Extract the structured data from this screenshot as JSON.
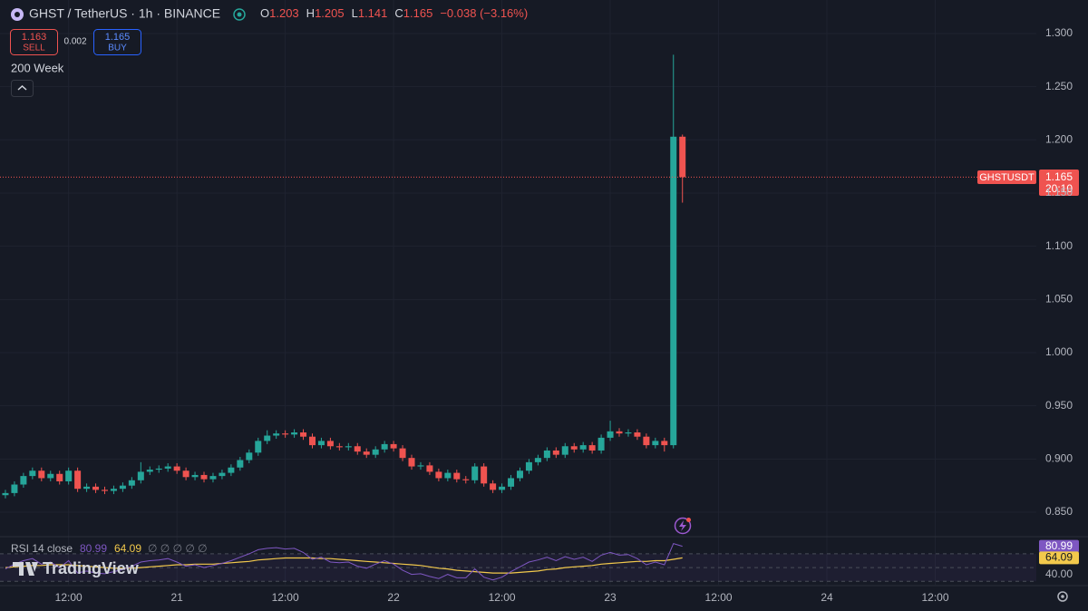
{
  "header": {
    "symbol": "GHST / TetherUS · 1h · BINANCE",
    "o": "O",
    "h": "H",
    "l": "L",
    "c": "C",
    "change": "−0.038 (−3.16%)"
  },
  "trading": {
    "sell": 1.163,
    "sell_label": "SELL",
    "spread": 0.002,
    "buy": 1.165,
    "buy_label": "BUY"
  },
  "indicator_label": "200 Week",
  "price_tag": {
    "symbol": "GHSTUSDT",
    "countdown": "20:10"
  },
  "watermark": "TradingView",
  "chart_data": {
    "type": "candlestick",
    "up_color": "#26a69a",
    "down_color": "#ef5350",
    "grid": true,
    "ylim": [
      0.827,
      1.3315
    ],
    "yticks": [
      {
        "value": 0.85,
        "label": "0.850"
      },
      {
        "value": 0.9,
        "label": "0.900"
      },
      {
        "value": 0.95,
        "label": "0.950"
      },
      {
        "value": 1.0,
        "label": "1.000"
      },
      {
        "value": 1.05,
        "label": "1.050"
      },
      {
        "value": 1.1,
        "label": "1.100"
      },
      {
        "value": 1.15,
        "label": "1.150"
      },
      {
        "value": 1.2,
        "label": "1.200"
      },
      {
        "value": 1.25,
        "label": "1.250"
      },
      {
        "value": 1.3,
        "label": "1.300"
      }
    ],
    "xlim": [
      -0.6,
      114.2
    ],
    "xticks": [
      {
        "value": 7,
        "label": "12:00"
      },
      {
        "value": 19,
        "label": "21"
      },
      {
        "value": 31,
        "label": "12:00"
      },
      {
        "value": 43,
        "label": "22"
      },
      {
        "value": 55,
        "label": "12:00"
      },
      {
        "value": 67,
        "label": "23"
      },
      {
        "value": 79,
        "label": "12:00"
      },
      {
        "value": 91,
        "label": "24"
      },
      {
        "value": 103,
        "label": "12:00"
      }
    ],
    "ohlc": [
      [
        0.866,
        0.871,
        0.863,
        0.868
      ],
      [
        0.868,
        0.879,
        0.865,
        0.876
      ],
      [
        0.876,
        0.887,
        0.873,
        0.884
      ],
      [
        0.884,
        0.892,
        0.881,
        0.889
      ],
      [
        0.889,
        0.892,
        0.879,
        0.882
      ],
      [
        0.882,
        0.889,
        0.879,
        0.886
      ],
      [
        0.886,
        0.889,
        0.876,
        0.879
      ],
      [
        0.879,
        0.892,
        0.876,
        0.889
      ],
      [
        0.889,
        0.892,
        0.869,
        0.872
      ],
      [
        0.872,
        0.877,
        0.869,
        0.874
      ],
      [
        0.874,
        0.877,
        0.868,
        0.871
      ],
      [
        0.871,
        0.874,
        0.867,
        0.87
      ],
      [
        0.87,
        0.875,
        0.867,
        0.872
      ],
      [
        0.872,
        0.878,
        0.869,
        0.875
      ],
      [
        0.875,
        0.883,
        0.872,
        0.88
      ],
      [
        0.88,
        0.897,
        0.877,
        0.888
      ],
      [
        0.888,
        0.893,
        0.885,
        0.89
      ],
      [
        0.89,
        0.894,
        0.887,
        0.891
      ],
      [
        0.891,
        0.896,
        0.888,
        0.893
      ],
      [
        0.893,
        0.896,
        0.886,
        0.889
      ],
      [
        0.889,
        0.892,
        0.88,
        0.883
      ],
      [
        0.883,
        0.888,
        0.88,
        0.885
      ],
      [
        0.885,
        0.888,
        0.878,
        0.881
      ],
      [
        0.881,
        0.887,
        0.878,
        0.884
      ],
      [
        0.884,
        0.89,
        0.881,
        0.887
      ],
      [
        0.887,
        0.895,
        0.884,
        0.892
      ],
      [
        0.892,
        0.902,
        0.889,
        0.899
      ],
      [
        0.899,
        0.909,
        0.896,
        0.906
      ],
      [
        0.906,
        0.92,
        0.903,
        0.917
      ],
      [
        0.917,
        0.927,
        0.914,
        0.922
      ],
      [
        0.922,
        0.927,
        0.919,
        0.924
      ],
      [
        0.924,
        0.927,
        0.92,
        0.923
      ],
      [
        0.923,
        0.928,
        0.92,
        0.925
      ],
      [
        0.925,
        0.928,
        0.918,
        0.921
      ],
      [
        0.921,
        0.924,
        0.91,
        0.913
      ],
      [
        0.913,
        0.92,
        0.91,
        0.917
      ],
      [
        0.917,
        0.92,
        0.909,
        0.912
      ],
      [
        0.912,
        0.915,
        0.908,
        0.911
      ],
      [
        0.911,
        0.915,
        0.908,
        0.912
      ],
      [
        0.912,
        0.915,
        0.904,
        0.907
      ],
      [
        0.907,
        0.91,
        0.901,
        0.904
      ],
      [
        0.904,
        0.912,
        0.901,
        0.909
      ],
      [
        0.909,
        0.917,
        0.906,
        0.914
      ],
      [
        0.914,
        0.917,
        0.907,
        0.91
      ],
      [
        0.91,
        0.913,
        0.898,
        0.901
      ],
      [
        0.901,
        0.904,
        0.89,
        0.893
      ],
      [
        0.893,
        0.897,
        0.89,
        0.894
      ],
      [
        0.894,
        0.897,
        0.885,
        0.888
      ],
      [
        0.888,
        0.891,
        0.879,
        0.882
      ],
      [
        0.882,
        0.89,
        0.879,
        0.887
      ],
      [
        0.887,
        0.89,
        0.878,
        0.881
      ],
      [
        0.881,
        0.884,
        0.877,
        0.88
      ],
      [
        0.88,
        0.896,
        0.877,
        0.893
      ],
      [
        0.893,
        0.896,
        0.874,
        0.877
      ],
      [
        0.877,
        0.88,
        0.868,
        0.871
      ],
      [
        0.871,
        0.877,
        0.868,
        0.874
      ],
      [
        0.874,
        0.885,
        0.871,
        0.882
      ],
      [
        0.882,
        0.892,
        0.879,
        0.889
      ],
      [
        0.889,
        0.9,
        0.886,
        0.897
      ],
      [
        0.897,
        0.904,
        0.894,
        0.901
      ],
      [
        0.901,
        0.911,
        0.898,
        0.908
      ],
      [
        0.908,
        0.911,
        0.901,
        0.904
      ],
      [
        0.904,
        0.915,
        0.901,
        0.912
      ],
      [
        0.912,
        0.915,
        0.906,
        0.909
      ],
      [
        0.909,
        0.916,
        0.906,
        0.913
      ],
      [
        0.913,
        0.916,
        0.905,
        0.908
      ],
      [
        0.908,
        0.923,
        0.905,
        0.92
      ],
      [
        0.92,
        0.936,
        0.917,
        0.926
      ],
      [
        0.926,
        0.929,
        0.921,
        0.924
      ],
      [
        0.924,
        0.928,
        0.921,
        0.925
      ],
      [
        0.925,
        0.928,
        0.918,
        0.921
      ],
      [
        0.921,
        0.924,
        0.91,
        0.913
      ],
      [
        0.913,
        0.92,
        0.91,
        0.917
      ],
      [
        0.917,
        0.92,
        0.907,
        0.913
      ],
      [
        0.913,
        1.28,
        0.91,
        1.203
      ],
      [
        1.203,
        1.205,
        1.141,
        1.165
      ]
    ],
    "rsi_pane": {
      "label": "RSI 14 close",
      "extra": "∅ ∅ ∅ ∅ ∅",
      "ylim": [
        25,
        95
      ],
      "yticks": [
        {
          "value": 40,
          "label": "40.00"
        }
      ],
      "levels": [
        70,
        50,
        30
      ],
      "rsi": {
        "color": "#7e57c2",
        "values": [
          48,
          55,
          60,
          63,
          55,
          58,
          50,
          60,
          42,
          45,
          42,
          41,
          44,
          47,
          52,
          58,
          60,
          61,
          63,
          58,
          52,
          54,
          50,
          53,
          56,
          60,
          65,
          70,
          76,
          78,
          79,
          77,
          78,
          72,
          62,
          65,
          58,
          57,
          58,
          52,
          49,
          55,
          60,
          55,
          46,
          40,
          41,
          37,
          34,
          40,
          35,
          35,
          48,
          36,
          32,
          36,
          44,
          51,
          58,
          61,
          65,
          60,
          66,
          62,
          65,
          59,
          68,
          72,
          68,
          69,
          63,
          54,
          58,
          54,
          85,
          80.99
        ]
      },
      "ma": {
        "color": "#f2c94c",
        "values": [
          50,
          51,
          52,
          53,
          53,
          54,
          54,
          54,
          53,
          52,
          51,
          50,
          49,
          49,
          49,
          50,
          51,
          52,
          53,
          54,
          54,
          55,
          55,
          55,
          56,
          57,
          58,
          59,
          61,
          62,
          63,
          64,
          64,
          64,
          64,
          63,
          63,
          62,
          61,
          60,
          59,
          58,
          57,
          56,
          55,
          54,
          53,
          51,
          49,
          48,
          46,
          45,
          44,
          43,
          42,
          42,
          42,
          43,
          44,
          45,
          47,
          48,
          50,
          51,
          52,
          53,
          55,
          56,
          57,
          58,
          59,
          59,
          60,
          60,
          62,
          64.09
        ]
      }
    }
  }
}
